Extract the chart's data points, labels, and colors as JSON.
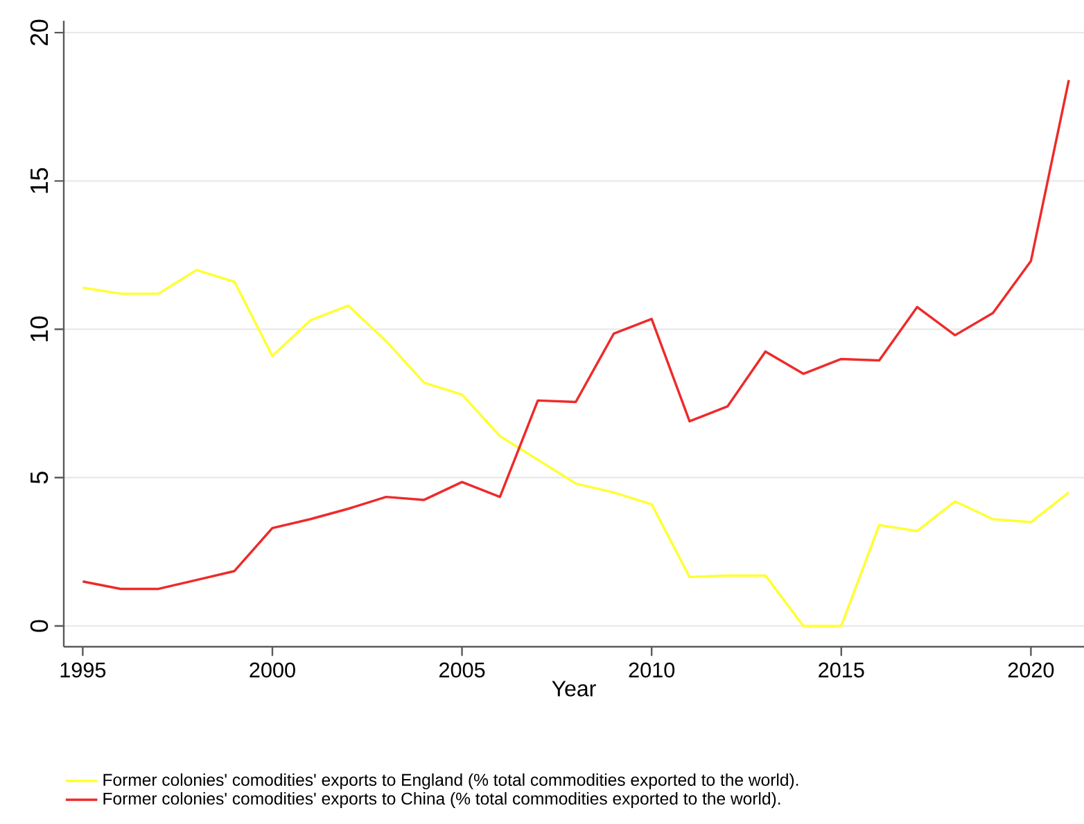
{
  "chart_data": {
    "type": "line",
    "xlabel": "Year",
    "x": [
      1995,
      1996,
      1997,
      1998,
      1999,
      2000,
      2001,
      2002,
      2003,
      2004,
      2005,
      2006,
      2007,
      2008,
      2009,
      2010,
      2011,
      2012,
      2013,
      2014,
      2015,
      2016,
      2017,
      2018,
      2019,
      2020,
      2021
    ],
    "series": [
      {
        "name": "Former colonies' comodities' exports to England (% total commodities exported to the world).",
        "color": "#ffff33",
        "values": [
          11.4,
          11.2,
          11.2,
          12.0,
          11.6,
          9.1,
          10.3,
          10.8,
          9.6,
          8.2,
          7.8,
          6.4,
          5.6,
          4.8,
          4.5,
          4.1,
          1.65,
          1.7,
          1.7,
          0,
          0,
          3.4,
          3.2,
          4.2,
          3.6,
          3.5,
          4.5
        ]
      },
      {
        "name": "Former colonies' comodities' exports to China (% total commodities exported to the world).",
        "color": "#ee2a2a",
        "values": [
          1.5,
          1.25,
          1.25,
          1.55,
          1.85,
          3.3,
          3.6,
          3.95,
          4.35,
          4.25,
          4.85,
          4.35,
          7.6,
          7.55,
          9.85,
          10.35,
          6.9,
          7.4,
          9.25,
          8.5,
          9.0,
          8.95,
          10.75,
          9.8,
          10.55,
          12.3,
          18.4
        ]
      }
    ],
    "xlim": [
      1994.5,
      2021.4
    ],
    "ylim": [
      -0.7,
      20.4
    ],
    "xticks": [
      1995,
      2000,
      2005,
      2010,
      2015,
      2020
    ],
    "yticks": [
      0,
      5,
      10,
      15,
      20
    ],
    "grid": "y",
    "legend": "bottom",
    "marker": "none",
    "line_style": "solid"
  }
}
